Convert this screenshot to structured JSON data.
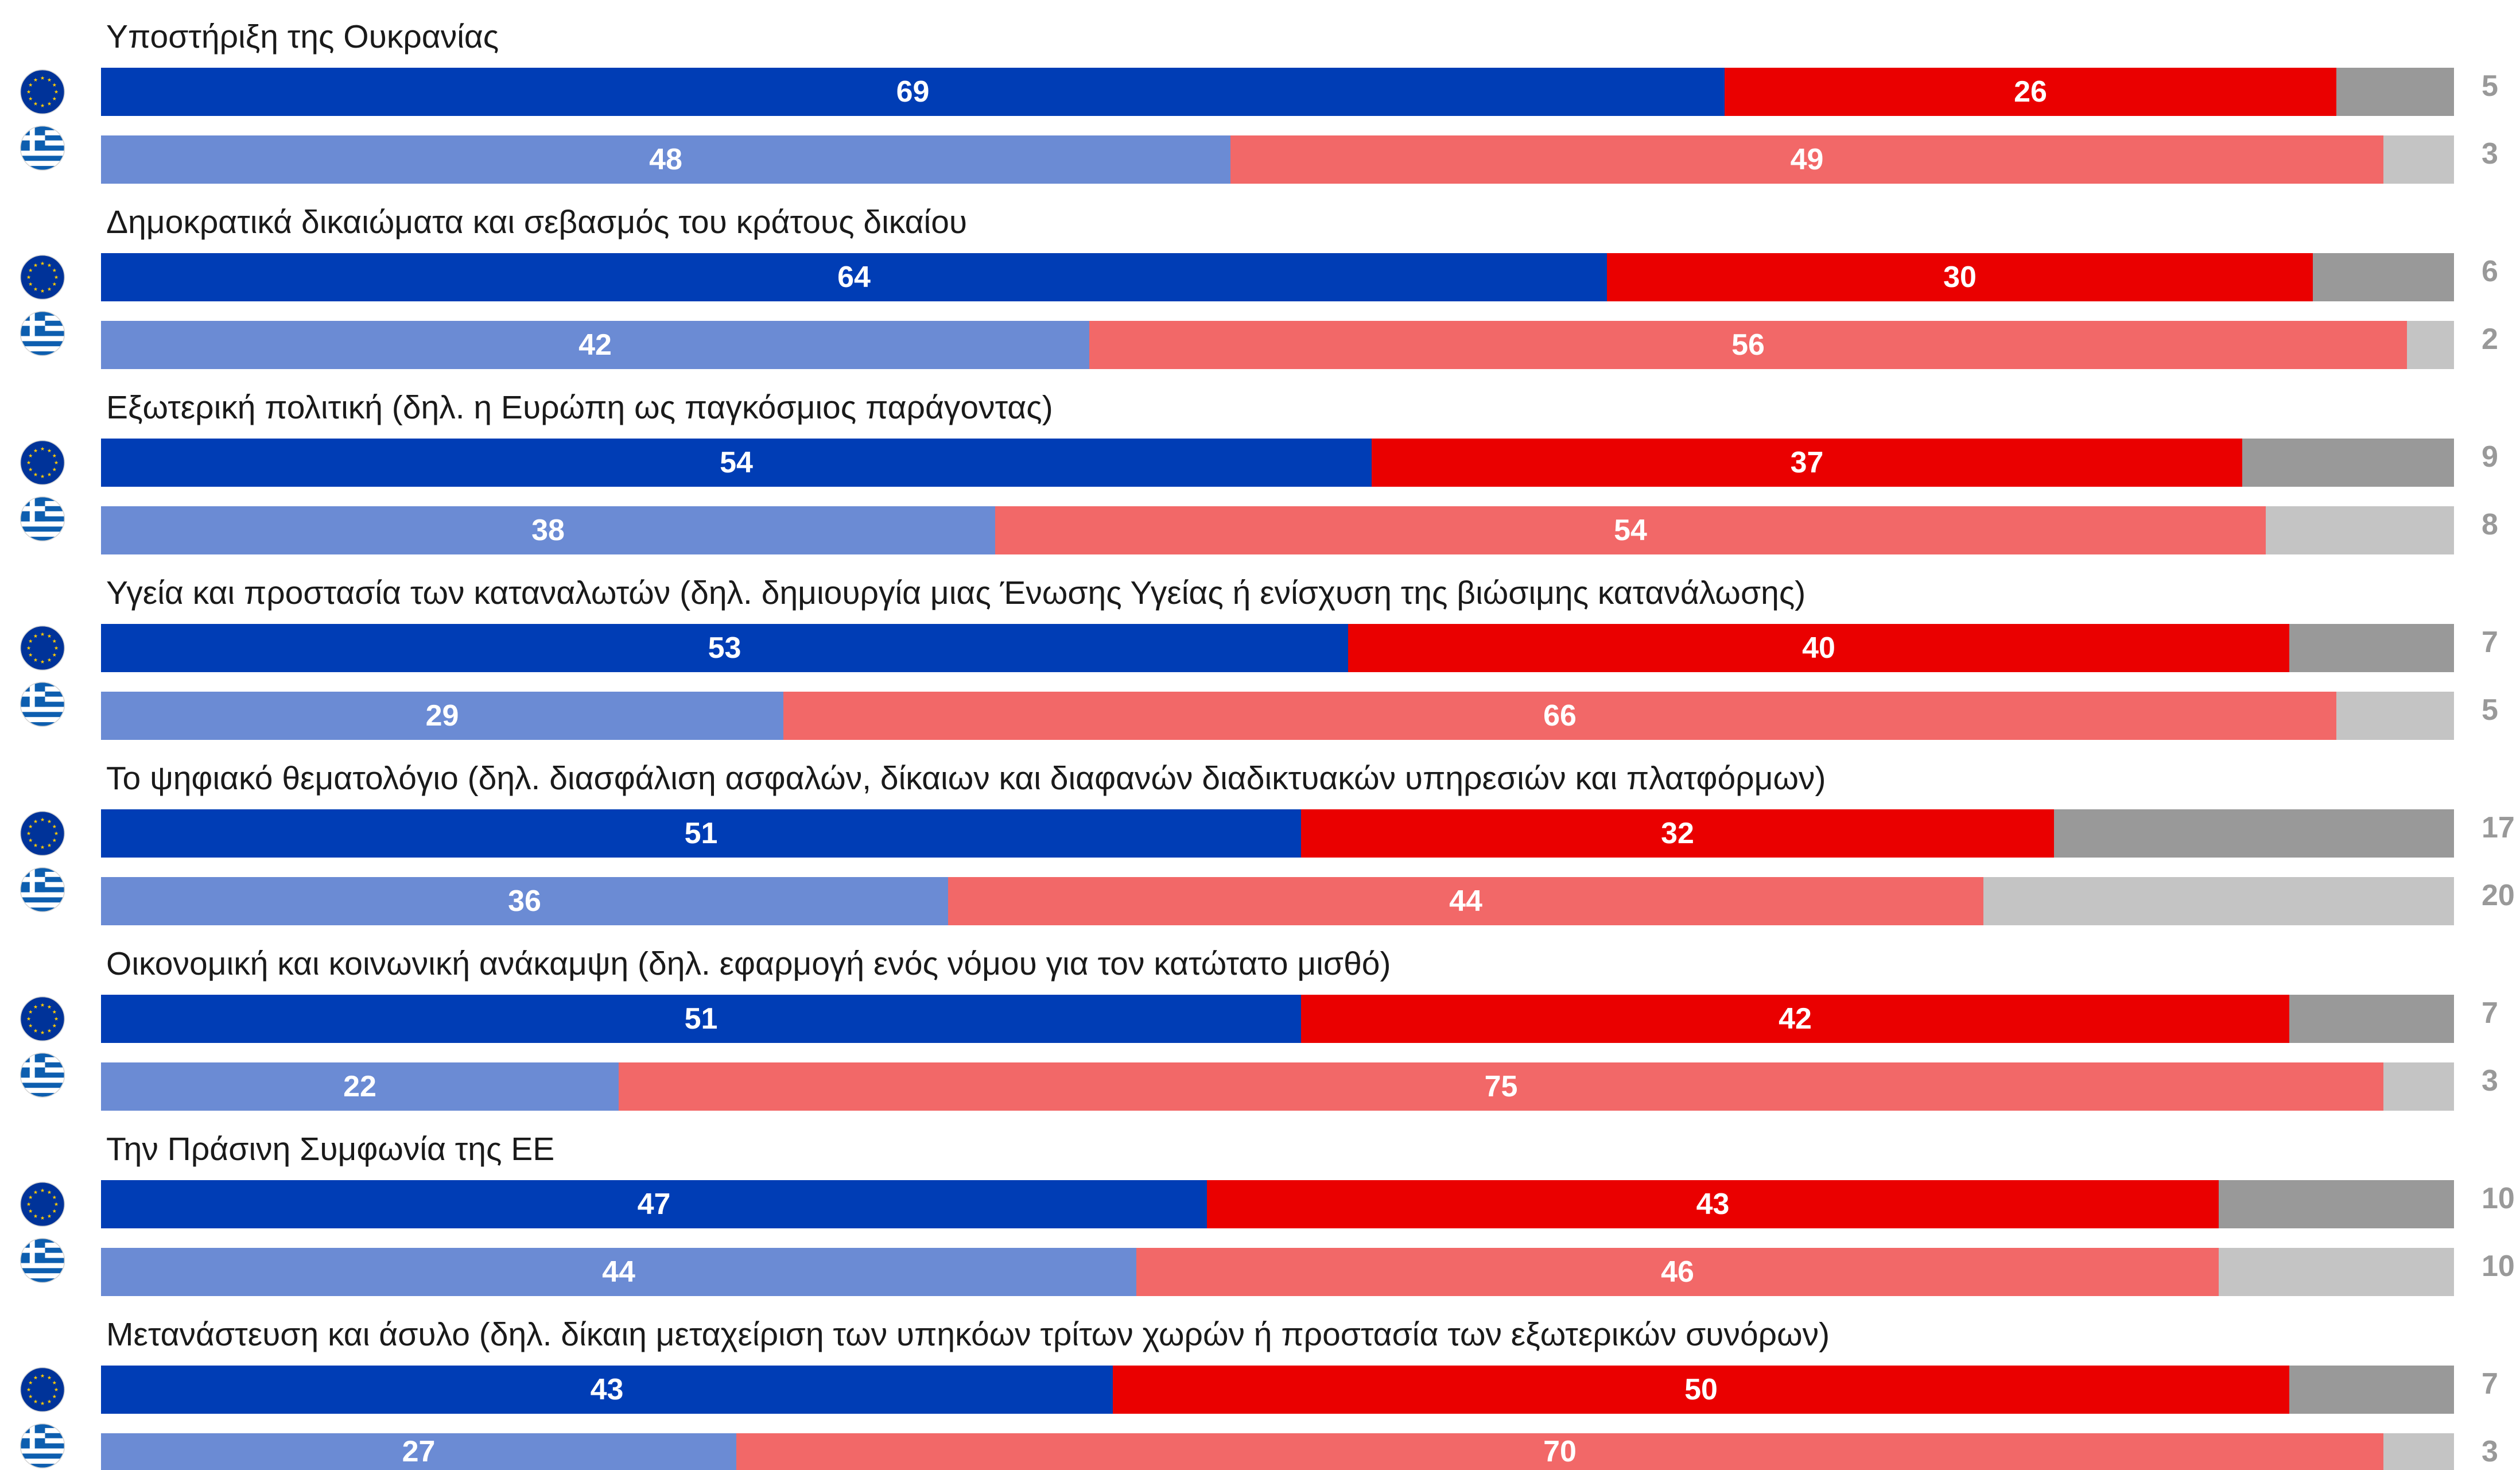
{
  "chart_data": {
    "type": "bar",
    "orientation": "horizontal",
    "stacked": true,
    "xlim": [
      0,
      100
    ],
    "grid": false,
    "legend": "none",
    "categories": [
      "Υποστήριξη της Ουκρανίας",
      "Δημοκρατικά δικαιώματα και σεβασμός του κράτους δικαίου",
      "Εξωτερική πολιτική (δηλ. η Ευρώπη ως παγκόσμιος παράγοντας)",
      "Υγεία και προστασία των καταναλωτών (δηλ. δημιουργία μιας Ένωσης Υγείας ή ενίσχυση της βιώσιμης κατανάλωσης)",
      "Το ψηφιακό θεματολόγιο (δηλ. διασφάλιση ασφαλών, δίκαιων και διαφανών διαδικτυακών υπηρεσιών και πλατφόρμων)",
      "Οικονομική και κοινωνική ανάκαμψη (δηλ. εφαρμογή ενός νόμου για τον κατώτατο μισθό)",
      "Την Πράσινη Συμφωνία της ΕΕ",
      "Μετανάστευση και άσυλο (δηλ. δίκαιη μεταχείριση των υπηκόων τρίτων χωρών ή προστασία των εξωτερικών συνόρων)"
    ],
    "series": [
      {
        "icon": "eu-flag-icon",
        "colors": [
          "#003db5",
          "#ea0000",
          "#999999"
        ],
        "values": [
          [
            69,
            26,
            5
          ],
          [
            64,
            30,
            6
          ],
          [
            54,
            37,
            9
          ],
          [
            53,
            40,
            7
          ],
          [
            51,
            32,
            17
          ],
          [
            51,
            42,
            7
          ],
          [
            47,
            43,
            10
          ],
          [
            43,
            50,
            7
          ]
        ]
      },
      {
        "icon": "greece-flag-icon",
        "colors": [
          "#6b8bd4",
          "#f26868",
          "#c4c4c4"
        ],
        "values": [
          [
            48,
            49,
            3
          ],
          [
            42,
            56,
            2
          ],
          [
            38,
            54,
            8
          ],
          [
            29,
            66,
            5
          ],
          [
            36,
            44,
            20
          ],
          [
            22,
            75,
            3
          ],
          [
            44,
            46,
            10
          ],
          [
            27,
            70,
            3
          ]
        ]
      }
    ],
    "title_color": "#1a1a1a",
    "label_colors": {
      "inside": "#ffffff",
      "outside": "#999999"
    }
  }
}
